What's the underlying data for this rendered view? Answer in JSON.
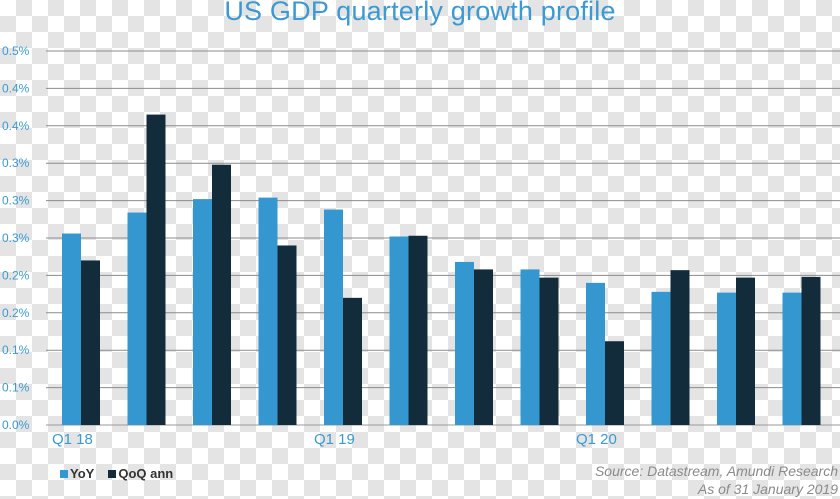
{
  "chart_data": {
    "type": "bar",
    "title": "US GDP quarterly growth profile",
    "y_tick_labels": [
      "0.0%",
      "0.1%",
      "0.1%",
      "0.2%",
      "0.2%",
      "0.3%",
      "0.3%",
      "0.3%",
      "0.4%",
      "0.4%",
      "0.5%"
    ],
    "ylim": [
      0,
      0.5
    ],
    "grid": true,
    "legend_position": "bottom-left",
    "x_labels": [
      {
        "label": "Q1 18",
        "index": 0
      },
      {
        "label": "Q1 19",
        "index": 4
      },
      {
        "label": "Q1 20",
        "index": 8
      }
    ],
    "series": [
      {
        "name": "YoY",
        "color": "#3597cf",
        "values": [
          0.256,
          0.284,
          0.302,
          0.304,
          0.288,
          0.252,
          0.218,
          0.208,
          0.19,
          0.178,
          0.177,
          0.177
        ]
      },
      {
        "name": "QoQ ann",
        "color": "#132c3c",
        "values": [
          0.22,
          0.415,
          0.348,
          0.24,
          0.17,
          0.253,
          0.208,
          0.197,
          0.112,
          0.207,
          0.197,
          0.198
        ]
      }
    ]
  },
  "legend": {
    "yoy_label": "YoY",
    "qoq_label": "QoQ ann",
    "yoy_color": "#3597cf",
    "qoq_color": "#132c3c"
  },
  "source": {
    "line1": "Source: Datastream, Amundi Research",
    "line2": "As of 31 January 2019"
  }
}
